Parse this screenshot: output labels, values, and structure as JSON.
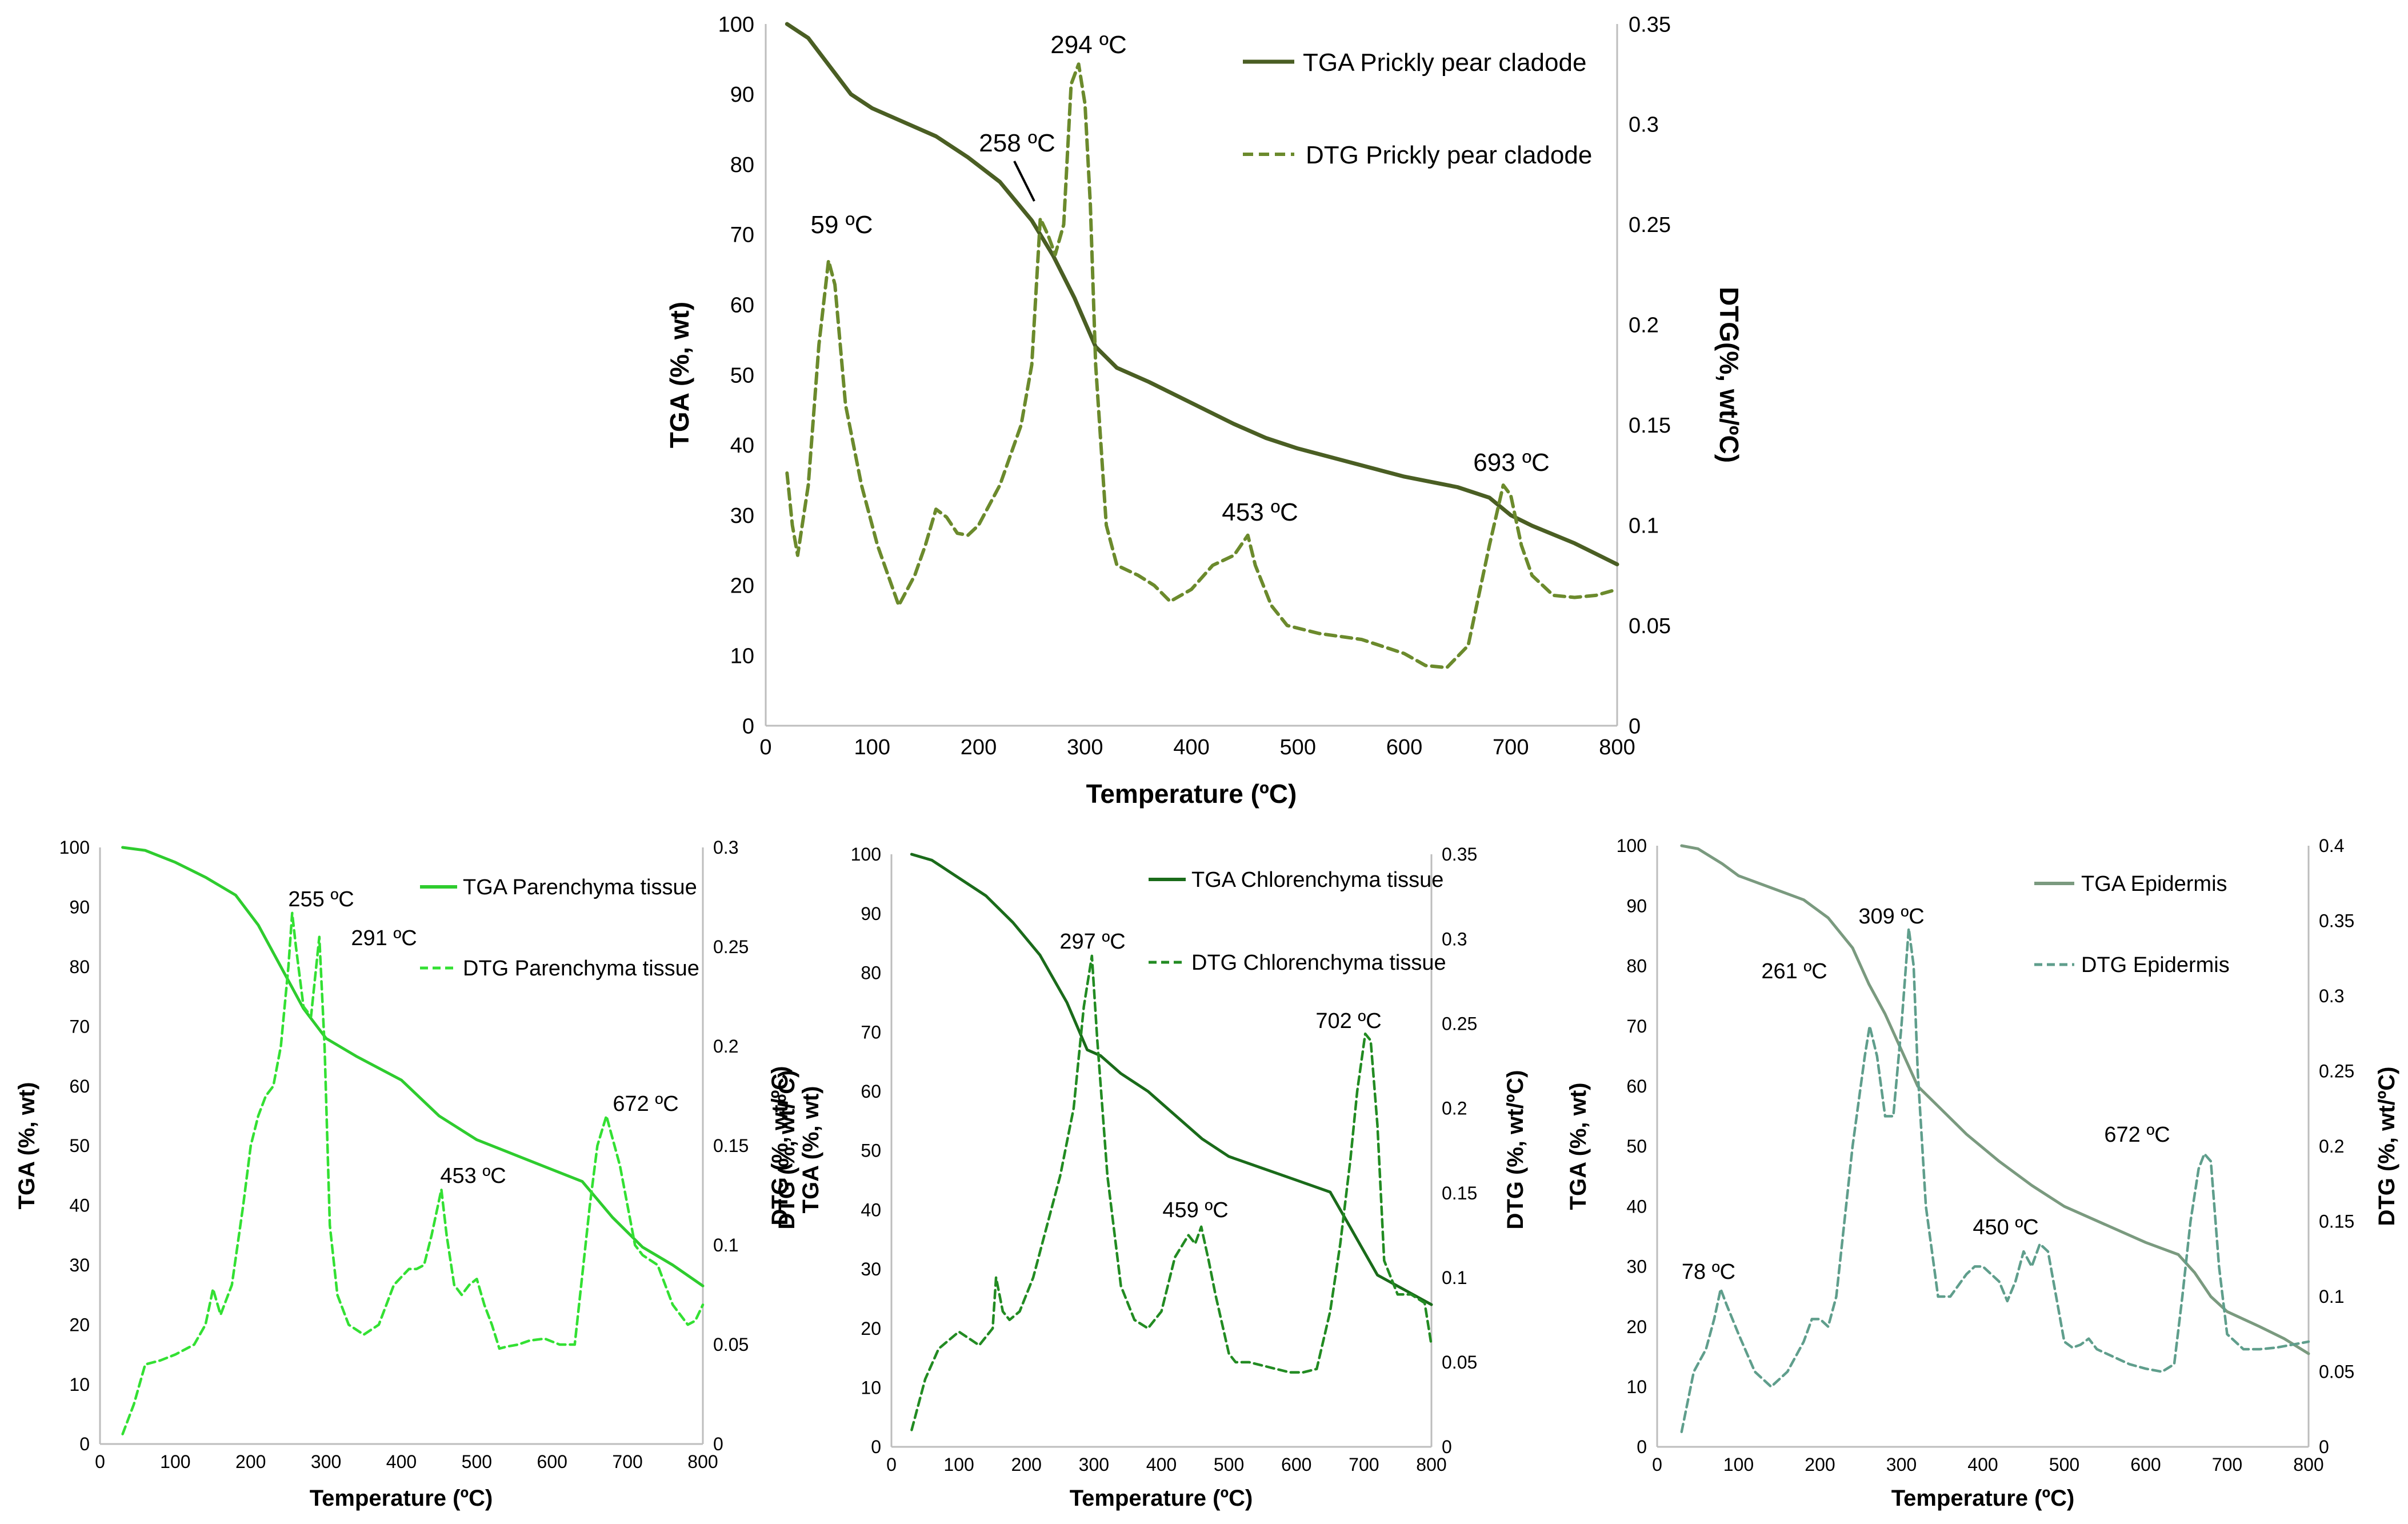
{
  "chart_data": [
    {
      "type": "line",
      "tga_label": "TGA (%, wt)",
      "dtg_label": "DTG(%, wt/ºC)",
      "xlabel": "Temperature (ºC)",
      "xlim": [
        0,
        800
      ],
      "ylim_tga": [
        0,
        100
      ],
      "ylim_dtg": [
        0,
        0.35
      ],
      "x_ticks": [
        "0",
        "100",
        "200",
        "300",
        "400",
        "500",
        "600",
        "700",
        "800"
      ],
      "tga_ticks": [
        "0",
        "10",
        "20",
        "30",
        "40",
        "50",
        "60",
        "70",
        "80",
        "90",
        "100"
      ],
      "dtg_ticks": [
        "0",
        "0.05",
        "0.1",
        "0.15",
        "0.2",
        "0.25",
        "0.3",
        "0.35"
      ],
      "color": "#4a5e23",
      "dtg_color": "#6b8a2c",
      "legend": [
        "TGA Prickly pear cladode",
        "DTG Prickly pear cladode"
      ],
      "series": [
        {
          "name": "TGA Prickly pear cladode",
          "axis": "tga",
          "style": "solid",
          "x": [
            20,
            40,
            60,
            80,
            100,
            130,
            160,
            190,
            220,
            250,
            270,
            290,
            310,
            330,
            360,
            400,
            440,
            470,
            500,
            550,
            600,
            650,
            680,
            700,
            720,
            760,
            800
          ],
          "y": [
            100,
            98,
            94,
            90,
            88,
            86,
            84,
            81,
            77.5,
            72,
            67,
            61,
            54,
            51,
            49,
            46,
            43,
            41,
            39.5,
            37.5,
            35.5,
            34,
            32.5,
            30,
            28.5,
            26,
            23
          ]
        },
        {
          "name": "DTG Prickly pear cladode",
          "axis": "dtg",
          "style": "dashed",
          "x": [
            20,
            25,
            30,
            40,
            50,
            59,
            65,
            75,
            90,
            105,
            125,
            140,
            150,
            160,
            170,
            180,
            190,
            200,
            220,
            240,
            250,
            258,
            265,
            272,
            280,
            287,
            294,
            300,
            305,
            310,
            320,
            330,
            350,
            365,
            380,
            400,
            420,
            440,
            453,
            460,
            475,
            490,
            520,
            560,
            600,
            620,
            640,
            660,
            680,
            693,
            700,
            710,
            720,
            740,
            760,
            780,
            800
          ],
          "y": [
            0.126,
            0.1,
            0.085,
            0.12,
            0.19,
            0.232,
            0.22,
            0.16,
            0.12,
            0.09,
            0.06,
            0.075,
            0.09,
            0.108,
            0.104,
            0.096,
            0.095,
            0.1,
            0.12,
            0.15,
            0.18,
            0.253,
            0.245,
            0.235,
            0.25,
            0.32,
            0.33,
            0.31,
            0.26,
            0.18,
            0.1,
            0.08,
            0.075,
            0.07,
            0.062,
            0.068,
            0.08,
            0.085,
            0.095,
            0.08,
            0.06,
            0.05,
            0.046,
            0.043,
            0.036,
            0.03,
            0.029,
            0.04,
            0.09,
            0.12,
            0.115,
            0.09,
            0.075,
            0.065,
            0.064,
            0.065,
            0.068
          ]
        }
      ],
      "annotations": [
        "59 ºC",
        "258 ºC",
        "294 ºC",
        "453 ºC",
        "693 ºC"
      ]
    },
    {
      "type": "line",
      "tga_label": "TGA (%, wt)",
      "dtg_label": "DTG (%, wt/ºC)",
      "xlabel": "Temperature (ºC)",
      "xlim": [
        0,
        800
      ],
      "ylim_tga": [
        0,
        100
      ],
      "ylim_dtg": [
        0,
        0.3
      ],
      "x_ticks": [
        "0",
        "100",
        "200",
        "300",
        "400",
        "500",
        "600",
        "700",
        "800"
      ],
      "tga_ticks": [
        "0",
        "10",
        "20",
        "30",
        "40",
        "50",
        "60",
        "70",
        "80",
        "90",
        "100"
      ],
      "dtg_ticks": [
        "0",
        "0.05",
        "0.1",
        "0.15",
        "0.2",
        "0.25",
        "0.3"
      ],
      "color": "#2ecc2e",
      "dtg_color": "#33e033",
      "legend": [
        "TGA Parenchyma tissue",
        "DTG Parenchyma tissue"
      ],
      "series": [
        {
          "name": "TGA Parenchyma tissue",
          "axis": "tga",
          "style": "solid",
          "x": [
            30,
            60,
            100,
            140,
            180,
            210,
            240,
            270,
            300,
            340,
            400,
            450,
            500,
            550,
            600,
            640,
            680,
            720,
            760,
            800
          ],
          "y": [
            100,
            99.5,
            97.5,
            95,
            92,
            87,
            80,
            73,
            68,
            65,
            61,
            55,
            51,
            48.5,
            46,
            44,
            38,
            33,
            30,
            26.5
          ]
        },
        {
          "name": "DTG Parenchyma tissue",
          "axis": "dtg",
          "style": "dashed",
          "x": [
            30,
            45,
            60,
            80,
            100,
            125,
            140,
            150,
            160,
            175,
            190,
            200,
            210,
            220,
            230,
            240,
            250,
            255,
            260,
            270,
            280,
            291,
            298,
            305,
            315,
            330,
            350,
            370,
            390,
            410,
            420,
            430,
            440,
            453,
            460,
            470,
            480,
            490,
            500,
            510,
            520,
            530,
            540,
            555,
            570,
            590,
            610,
            630,
            650,
            660,
            672,
            690,
            710,
            720,
            740,
            760,
            780,
            790,
            800
          ],
          "y": [
            0.005,
            0.02,
            0.04,
            0.042,
            0.045,
            0.05,
            0.06,
            0.078,
            0.065,
            0.08,
            0.12,
            0.15,
            0.165,
            0.175,
            0.18,
            0.2,
            0.24,
            0.267,
            0.25,
            0.22,
            0.215,
            0.255,
            0.2,
            0.11,
            0.075,
            0.06,
            0.055,
            0.06,
            0.08,
            0.088,
            0.088,
            0.09,
            0.105,
            0.128,
            0.105,
            0.08,
            0.075,
            0.08,
            0.083,
            0.07,
            0.06,
            0.048,
            0.049,
            0.05,
            0.052,
            0.053,
            0.05,
            0.05,
            0.12,
            0.15,
            0.165,
            0.14,
            0.1,
            0.095,
            0.09,
            0.07,
            0.06,
            0.062,
            0.07
          ]
        }
      ],
      "annotations": [
        "255 ºC",
        "291 ºC",
        "453 ºC",
        "672 ºC"
      ]
    },
    {
      "type": "line",
      "tga_label": "TGA (%, wt)",
      "tga_label_2": "DTG (%, wt/ºC)",
      "dtg_label": "DTG (%, wt/ºC)",
      "xlabel": "Temperature (ºC)",
      "xlim": [
        0,
        800
      ],
      "ylim_tga": [
        0,
        100
      ],
      "ylim_dtg": [
        0,
        0.35
      ],
      "x_ticks": [
        "0",
        "100",
        "200",
        "300",
        "400",
        "500",
        "600",
        "700",
        "800"
      ],
      "tga_ticks": [
        "0",
        "10",
        "20",
        "30",
        "40",
        "50",
        "60",
        "70",
        "80",
        "90",
        "100"
      ],
      "dtg_ticks": [
        "0",
        "0.05",
        "0.1",
        "0.15",
        "0.2",
        "0.25",
        "0.3",
        "0.35"
      ],
      "color": "#1a6b1a",
      "dtg_color": "#228b22",
      "legend": [
        "TGA Chlorenchyma tissue",
        "DTG Chlorenchyma tissue"
      ],
      "series": [
        {
          "name": "TGA Chlorenchyma tissue",
          "axis": "tga",
          "style": "solid",
          "x": [
            30,
            60,
            100,
            140,
            180,
            220,
            260,
            290,
            310,
            340,
            380,
            420,
            460,
            500,
            550,
            600,
            650,
            680,
            700,
            720,
            760,
            800
          ],
          "y": [
            100,
            99,
            96,
            93,
            88.5,
            83,
            75,
            67,
            66,
            63,
            60,
            56,
            52,
            49,
            47,
            45,
            43,
            37,
            33,
            29,
            26.5,
            24
          ]
        },
        {
          "name": "DTG Chlorenchyma tissue",
          "axis": "dtg",
          "style": "dashed",
          "x": [
            30,
            50,
            70,
            100,
            130,
            150,
            155,
            165,
            175,
            190,
            210,
            230,
            250,
            270,
            285,
            297,
            305,
            320,
            340,
            360,
            380,
            400,
            420,
            440,
            450,
            459,
            470,
            480,
            500,
            510,
            530,
            550,
            570,
            590,
            610,
            630,
            650,
            665,
            680,
            690,
            702,
            710,
            720,
            730,
            750,
            770,
            790,
            800
          ],
          "y": [
            0.01,
            0.04,
            0.058,
            0.068,
            0.06,
            0.07,
            0.1,
            0.08,
            0.075,
            0.08,
            0.1,
            0.13,
            0.16,
            0.2,
            0.26,
            0.29,
            0.24,
            0.16,
            0.095,
            0.075,
            0.07,
            0.08,
            0.112,
            0.125,
            0.12,
            0.13,
            0.11,
            0.09,
            0.055,
            0.05,
            0.05,
            0.048,
            0.046,
            0.044,
            0.044,
            0.046,
            0.08,
            0.12,
            0.17,
            0.21,
            0.244,
            0.24,
            0.19,
            0.11,
            0.09,
            0.09,
            0.085,
            0.06
          ]
        }
      ],
      "annotations": [
        "297 ºC",
        "459 ºC",
        "702 ºC"
      ]
    },
    {
      "type": "line",
      "tga_label": "TGA (%, wt)",
      "dtg_label": "DTG (%, wt/ºC)",
      "xlabel": "Temperature (ºC)",
      "xlim": [
        0,
        800
      ],
      "ylim_tga": [
        0,
        100
      ],
      "ylim_dtg": [
        0,
        0.4
      ],
      "x_ticks": [
        "0",
        "100",
        "200",
        "300",
        "400",
        "500",
        "600",
        "700",
        "800"
      ],
      "tga_ticks": [
        "0",
        "10",
        "20",
        "30",
        "40",
        "50",
        "60",
        "70",
        "80",
        "90",
        "100"
      ],
      "dtg_ticks": [
        "0",
        "0.05",
        "0.1",
        "0.15",
        "0.2",
        "0.25",
        "0.3",
        "0.35",
        "0.4"
      ],
      "color": "#7a9a7f",
      "dtg_color": "#5f9e8c",
      "legend": [
        "TGA Epidermis",
        "DTG Epidermis"
      ],
      "series": [
        {
          "name": "TGA Epidermis",
          "axis": "tga",
          "style": "solid",
          "x": [
            30,
            50,
            80,
            100,
            140,
            180,
            210,
            240,
            260,
            280,
            300,
            320,
            350,
            380,
            420,
            460,
            500,
            550,
            600,
            640,
            660,
            680,
            700,
            740,
            770,
            800
          ],
          "y": [
            100,
            99.5,
            97,
            95,
            93,
            91,
            88,
            83,
            77,
            72,
            66,
            60,
            56,
            52,
            47.5,
            43.5,
            40,
            37,
            34,
            32,
            29,
            25,
            22.5,
            20,
            18,
            15.5
          ]
        },
        {
          "name": "DTG Epidermis",
          "axis": "dtg",
          "style": "dashed",
          "x": [
            30,
            45,
            60,
            70,
            78,
            85,
            100,
            120,
            140,
            160,
            180,
            190,
            200,
            210,
            220,
            240,
            255,
            261,
            270,
            280,
            290,
            300,
            309,
            315,
            320,
            330,
            345,
            360,
            380,
            390,
            400,
            420,
            430,
            440,
            450,
            460,
            470,
            480,
            490,
            500,
            510,
            520,
            530,
            540,
            560,
            580,
            600,
            620,
            635,
            645,
            655,
            665,
            672,
            680,
            690,
            700,
            720,
            740,
            760,
            780,
            800
          ],
          "y": [
            0.01,
            0.05,
            0.065,
            0.085,
            0.105,
            0.095,
            0.075,
            0.05,
            0.04,
            0.05,
            0.07,
            0.085,
            0.085,
            0.08,
            0.1,
            0.2,
            0.26,
            0.28,
            0.26,
            0.22,
            0.22,
            0.28,
            0.345,
            0.32,
            0.25,
            0.16,
            0.1,
            0.1,
            0.115,
            0.12,
            0.12,
            0.11,
            0.097,
            0.11,
            0.13,
            0.12,
            0.135,
            0.13,
            0.1,
            0.07,
            0.066,
            0.068,
            0.072,
            0.065,
            0.06,
            0.055,
            0.052,
            0.05,
            0.055,
            0.1,
            0.15,
            0.185,
            0.195,
            0.19,
            0.12,
            0.075,
            0.065,
            0.065,
            0.066,
            0.068,
            0.07
          ]
        }
      ],
      "annotations": [
        "78 ºC",
        "261 ºC",
        "309 ºC",
        "450 ºC",
        "672 ºC"
      ]
    }
  ]
}
